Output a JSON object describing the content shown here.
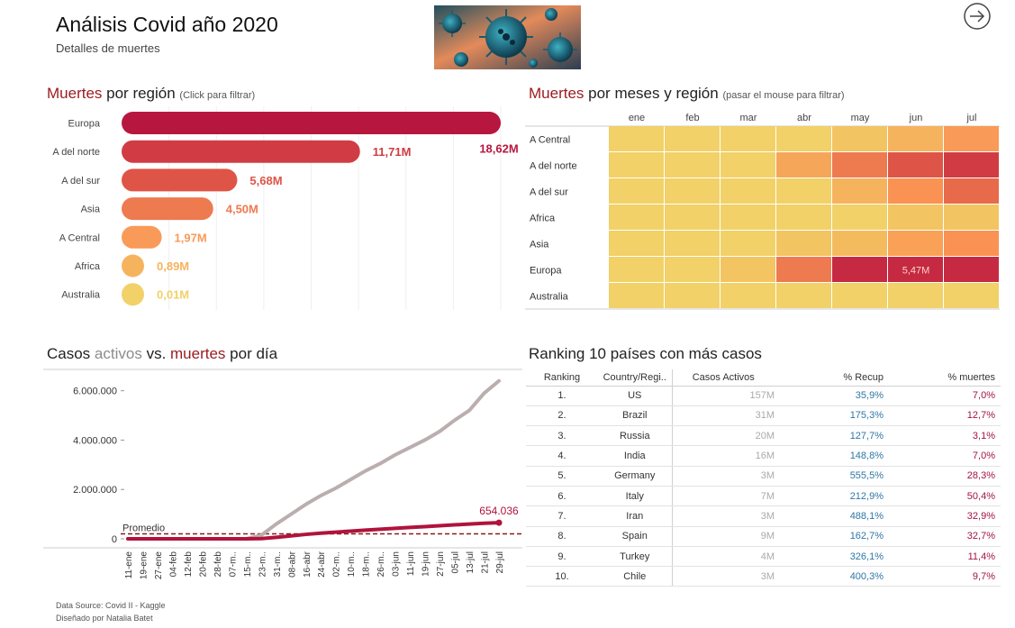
{
  "header": {
    "title": "Análisis Covid año 2020",
    "subtitle": "Detalles de  muertes"
  },
  "deaths_by_region": {
    "title_red": "Muertes",
    "title_rest": " por región ",
    "hint": "(Click para filtrar)",
    "bars": [
      {
        "region": "Europa",
        "value": 18.62,
        "label": "18,62M",
        "color": "#b7173f"
      },
      {
        "region": "A del norte",
        "value": 11.71,
        "label": "11,71M",
        "color": "#d13c44"
      },
      {
        "region": "A del sur",
        "value": 5.68,
        "label": "5,68M",
        "color": "#de5547"
      },
      {
        "region": "Asia",
        "value": 4.5,
        "label": "4,50M",
        "color": "#ee7a50"
      },
      {
        "region": "A Central",
        "value": 1.97,
        "label": "1,97M",
        "color": "#f99a58"
      },
      {
        "region": "Africa",
        "value": 0.89,
        "label": "0,89M",
        "color": "#f6b35e"
      },
      {
        "region": "Australia",
        "value": 0.01,
        "label": "0,01M",
        "color": "#f1d168"
      }
    ]
  },
  "heatmap": {
    "title_red": "Muertes",
    "title_rest": " por meses y región ",
    "hint": "(pasar el mouse para filtrar)",
    "months": [
      "ene",
      "feb",
      "mar",
      "abr",
      "may",
      "jun",
      "jul"
    ],
    "rows": [
      {
        "region": "A Central",
        "colors": [
          "#f1d168",
          "#f1d168",
          "#f1d168",
          "#f1d168",
          "#f3c462",
          "#f6b35e",
          "#f99a58"
        ]
      },
      {
        "region": "A del norte",
        "colors": [
          "#f1d168",
          "#f1d168",
          "#f1d168",
          "#f6a658",
          "#ee7a50",
          "#de5547",
          "#d13c44"
        ]
      },
      {
        "region": "A del sur",
        "colors": [
          "#f1d168",
          "#f1d168",
          "#f1d168",
          "#f1d168",
          "#f6b35e",
          "#f99252",
          "#e76a4b"
        ]
      },
      {
        "region": "Africa",
        "colors": [
          "#f1d168",
          "#f1d168",
          "#f1d168",
          "#f1d168",
          "#f1d168",
          "#f3c462",
          "#f3c462"
        ]
      },
      {
        "region": "Asia",
        "colors": [
          "#f1d168",
          "#f1d168",
          "#f1d168",
          "#f3c462",
          "#f4bb5e",
          "#f9a156",
          "#f99252"
        ]
      },
      {
        "region": "Europa",
        "colors": [
          "#f1d168",
          "#f1d168",
          "#f3c462",
          "#ee7a50",
          "#c52a42",
          "#c52a42",
          "#c52a42"
        ]
      },
      {
        "region": "Australia",
        "colors": [
          "#f1d168",
          "#f1d168",
          "#f1d168",
          "#f1d168",
          "#f1d168",
          "#f1d168",
          "#f1d168"
        ]
      }
    ],
    "annotation": {
      "text": "5,47M",
      "row": 5,
      "col": 5
    }
  },
  "active_vs_deaths": {
    "title_a": "Casos ",
    "title_gray": "activos",
    "title_b": " vs. ",
    "title_red": "muertes",
    "title_c": " por día",
    "y_ticks": [
      "6.000.000",
      "4.000.000",
      "2.000.000",
      "0"
    ],
    "x_ticks": [
      "11-ene",
      "19-ene",
      "27-ene",
      "04-feb",
      "12-feb",
      "20-feb",
      "28-feb",
      "07-m..",
      "15-m..",
      "23-m..",
      "31-m..",
      "08-abr",
      "16-abr",
      "24-abr",
      "02-m..",
      "10-m..",
      "18-m..",
      "26-m..",
      "03-jun",
      "11-jun",
      "19-jun",
      "27-jun",
      "05-jul",
      "13-jul",
      "21-jul",
      "29-jul"
    ],
    "promedio_label": "Promedio",
    "last_deaths_label": "654.036"
  },
  "chart_data": {
    "type": "line",
    "xlabel": "",
    "ylabel": "",
    "ylim": [
      0,
      6500000
    ],
    "x": [
      "11-ene",
      "19-ene",
      "27-ene",
      "04-feb",
      "12-feb",
      "20-feb",
      "28-feb",
      "07-m..",
      "15-m..",
      "23-m..",
      "31-m..",
      "08-abr",
      "16-abr",
      "24-abr",
      "02-m..",
      "10-m..",
      "18-m..",
      "26-m..",
      "03-jun",
      "11-jun",
      "19-jun",
      "27-jun",
      "05-jul",
      "13-jul",
      "21-jul",
      "29-jul"
    ],
    "series": [
      {
        "values": [
          0,
          0,
          0,
          0,
          0,
          0,
          0,
          0,
          0,
          150000,
          600000,
          1000000,
          1400000,
          1750000,
          2050000,
          2400000,
          2750000,
          3050000,
          3400000,
          3700000,
          4000000,
          4350000,
          4800000,
          5200000,
          5900000,
          6400000
        ],
        "color": "#bbaeae"
      },
      {
        "values": [
          0,
          0,
          0,
          0,
          0,
          0,
          0,
          0,
          0,
          10000,
          60000,
          120000,
          180000,
          230000,
          270000,
          310000,
          350000,
          390000,
          425000,
          460000,
          495000,
          530000,
          565000,
          600000,
          630000,
          654036
        ],
        "color": "#b0133c"
      }
    ],
    "reference_line": {
      "label": "Promedio",
      "value": 200000
    }
  },
  "ranking": {
    "title": "Ranking 10 países con más casos",
    "columns": [
      "Ranking",
      "Country/Regi..",
      "Casos Activos",
      "% Recup",
      "% muertes"
    ],
    "rows": [
      {
        "rank": "1.",
        "country": "US",
        "cases": "157M",
        "recup": "35,9%",
        "deaths": "7,0%"
      },
      {
        "rank": "2.",
        "country": "Brazil",
        "cases": "31M",
        "recup": "175,3%",
        "deaths": "12,7%"
      },
      {
        "rank": "3.",
        "country": "Russia",
        "cases": "20M",
        "recup": "127,7%",
        "deaths": "3,1%"
      },
      {
        "rank": "4.",
        "country": "India",
        "cases": "16M",
        "recup": "148,8%",
        "deaths": "7,0%"
      },
      {
        "rank": "5.",
        "country": "Germany",
        "cases": "3M",
        "recup": "555,5%",
        "deaths": "28,3%"
      },
      {
        "rank": "6.",
        "country": "Italy",
        "cases": "7M",
        "recup": "212,9%",
        "deaths": "50,4%"
      },
      {
        "rank": "7.",
        "country": "Iran",
        "cases": "3M",
        "recup": "488,1%",
        "deaths": "32,9%"
      },
      {
        "rank": "8.",
        "country": "Spain",
        "cases": "9M",
        "recup": "162,7%",
        "deaths": "32,7%"
      },
      {
        "rank": "9.",
        "country": "Turkey",
        "cases": "4M",
        "recup": "326,1%",
        "deaths": "11,4%"
      },
      {
        "rank": "10.",
        "country": "Chile",
        "cases": "3M",
        "recup": "400,3%",
        "deaths": "9,7%"
      }
    ]
  },
  "footer": {
    "source": "Data Source: Covid II - Kaggle",
    "author": "Diseñado por Natalia Batet"
  },
  "icons": {
    "nav": "arrow-right-circle-icon",
    "hero": "virus-image"
  }
}
